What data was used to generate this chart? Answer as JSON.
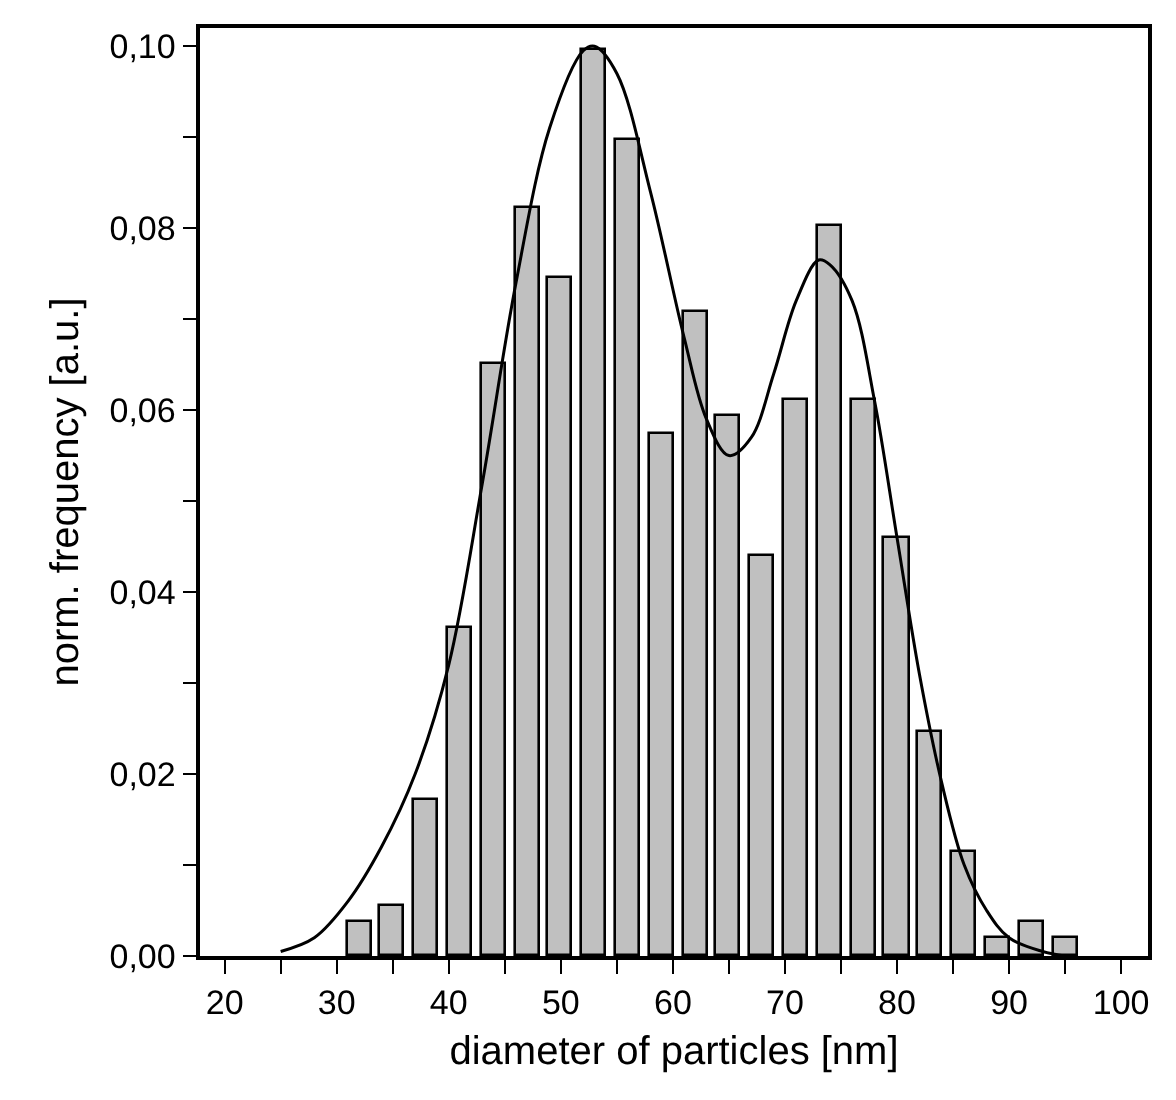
{
  "chart_data": {
    "type": "bar",
    "xlabel": "diameter of particles [nm]",
    "ylabel": "norm. frequency [a.u.]",
    "x": [
      32,
      35,
      38,
      41,
      44,
      47,
      50,
      53,
      56,
      59,
      62,
      65,
      68,
      71,
      74,
      77,
      80,
      83,
      86,
      89,
      92,
      95
    ],
    "series": [
      {
        "color": "#c0c0c0",
        "values": [
          0.0037,
          0.0056,
          0.0171,
          0.0361,
          0.0651,
          0.0822,
          0.0745,
          0.0995,
          0.0898,
          0.0574,
          0.0708,
          0.0594,
          0.0439,
          0.0612,
          0.0802,
          0.0612,
          0.0459,
          0.0247,
          0.0114,
          0.0019,
          0.0037,
          0.0019
        ]
      },
      {
        "type": "line",
        "color": "#000000",
        "x": [
          25,
          28,
          31,
          34,
          37,
          40,
          43,
          46,
          49,
          52,
          53,
          55,
          58,
          61,
          63,
          65,
          67,
          69,
          71,
          73,
          74,
          76,
          78,
          80,
          82,
          84,
          86,
          88,
          90,
          93,
          95
        ],
        "values": [
          0.0005,
          0.002,
          0.006,
          0.012,
          0.02,
          0.032,
          0.052,
          0.074,
          0.091,
          0.0995,
          0.1,
          0.097,
          0.084,
          0.068,
          0.059,
          0.055,
          0.057,
          0.064,
          0.072,
          0.0765,
          0.076,
          0.072,
          0.061,
          0.046,
          0.031,
          0.019,
          0.01,
          0.005,
          0.002,
          0.0005,
          0
        ]
      }
    ],
    "xlim": [
      17.8,
      102.4
    ],
    "xticks": [
      20,
      {
        "value": 25,
        "label": null
      },
      30,
      {
        "value": 35,
        "label": null
      },
      40,
      {
        "value": 45,
        "label": null
      },
      50,
      {
        "value": 55,
        "label": null
      },
      60,
      {
        "value": 65,
        "label": null
      },
      70,
      {
        "value": 75,
        "label": null
      },
      80,
      {
        "value": 85,
        "label": null
      },
      90,
      {
        "value": 95,
        "label": null
      },
      100
    ],
    "ylim": [
      0,
      0.102
    ],
    "yticks": [
      {
        "value": 0,
        "label": "0,00"
      },
      {
        "value": 0.01,
        "label": null
      },
      {
        "value": 0.02,
        "label": "0,02"
      },
      {
        "value": 0.03,
        "label": null
      },
      {
        "value": 0.04,
        "label": "0,04"
      },
      {
        "value": 0.05,
        "label": null
      },
      {
        "value": 0.06,
        "label": "0,06"
      },
      {
        "value": 0.07,
        "label": null
      },
      {
        "value": 0.08,
        "label": "0,08"
      },
      {
        "value": 0.09,
        "label": null
      },
      {
        "value": 0.1,
        "label": "0,10"
      }
    ],
    "grid": false
  }
}
